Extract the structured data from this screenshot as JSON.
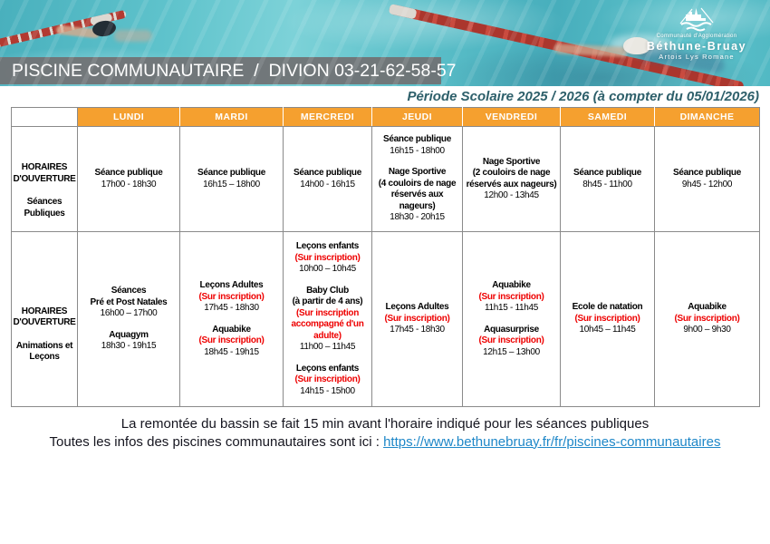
{
  "header": {
    "title": "PISCINE COMMUNAUTAIRE  /  DIVION 03-21-62-58-57",
    "logo": {
      "line1": "Communauté d'Agglomération",
      "line2": "Béthune-Bruay",
      "line3": "Artois Lys Romane"
    }
  },
  "period": "Période Scolaire 2025 / 2026 (à compter du 05/01/2026)",
  "colors": {
    "orange": "#F5A02F",
    "red": "#EE0000",
    "period_teal": "#2D5F6A",
    "link_blue": "#1E87C8",
    "grid_gray": "#8A8A8A",
    "titlebar_gray": "#717274"
  },
  "table": {
    "days": [
      "LUNDI",
      "MARDI",
      "MERCREDI",
      "JEUDI",
      "VENDREDI",
      "SAMEDI",
      "DIMANCHE"
    ],
    "rows": [
      {
        "label": {
          "title": "HORAIRES D'OUVERTURE",
          "subtitle": "Séances Publiques"
        },
        "cells": [
          [
            [
              {
                "s": "t",
                "x": "Séance publique"
              },
              {
                "s": "h",
                "x": "17h00 - 18h30"
              }
            ]
          ],
          [
            [
              {
                "s": "t",
                "x": "Séance publique"
              },
              {
                "s": "h",
                "x": "16h15 – 18h00"
              }
            ]
          ],
          [
            [
              {
                "s": "t",
                "x": "Séance publique"
              },
              {
                "s": "h",
                "x": "14h00 - 16h15"
              }
            ]
          ],
          [
            [
              {
                "s": "t",
                "x": "Séance publique"
              },
              {
                "s": "h",
                "x": "16h15 - 18h00"
              }
            ],
            [
              {
                "s": "t",
                "x": "Nage Sportive"
              },
              {
                "s": "n",
                "x": "(4 couloirs de nage réservés aux nageurs)"
              },
              {
                "s": "h",
                "x": "18h30 - 20h15"
              }
            ]
          ],
          [
            [
              {
                "s": "t",
                "x": "Nage Sportive"
              },
              {
                "s": "n",
                "x": "(2 couloirs de nage réservés aux nageurs)"
              },
              {
                "s": "h",
                "x": "12h00 - 13h45"
              }
            ]
          ],
          [
            [
              {
                "s": "t",
                "x": "Séance publique"
              },
              {
                "s": "h",
                "x": "8h45 - 11h00"
              }
            ]
          ],
          [
            [
              {
                "s": "t",
                "x": "Séance publique"
              },
              {
                "s": "h",
                "x": "9h45 - 12h00"
              }
            ]
          ]
        ]
      },
      {
        "label": {
          "title": "HORAIRES D'OUVERTURE",
          "subtitle": "Animations et Leçons"
        },
        "cells": [
          [
            [
              {
                "s": "t",
                "x": "Séances"
              },
              {
                "s": "t",
                "x": "Pré et Post Natales"
              },
              {
                "s": "h",
                "x": "16h00 – 17h00"
              }
            ],
            [
              {
                "s": "t",
                "x": "Aquagym"
              },
              {
                "s": "h",
                "x": "18h30 - 19h15"
              }
            ]
          ],
          [
            [
              {
                "s": "t",
                "x": "Leçons Adultes"
              },
              {
                "s": "r",
                "x": "(Sur inscription)"
              },
              {
                "s": "h",
                "x": "17h45 - 18h30"
              }
            ],
            [
              {
                "s": "t",
                "x": "Aquabike"
              },
              {
                "s": "r",
                "x": "(Sur inscription)"
              },
              {
                "s": "h",
                "x": "18h45 - 19h15"
              }
            ]
          ],
          [
            [
              {
                "s": "t",
                "x": "Leçons enfants"
              },
              {
                "s": "r",
                "x": "(Sur inscription)"
              },
              {
                "s": "h",
                "x": "10h00 – 10h45"
              }
            ],
            [
              {
                "s": "t",
                "x": "Baby Club"
              },
              {
                "s": "n",
                "x": "(à partir de 4 ans)"
              },
              {
                "s": "r",
                "x": "(Sur inscription accompagné d'un adulte)"
              },
              {
                "s": "h",
                "x": "11h00 – 11h45"
              }
            ],
            [
              {
                "s": "t",
                "x": "Leçons enfants"
              },
              {
                "s": "r",
                "x": "(Sur inscription)"
              },
              {
                "s": "h",
                "x": "14h15 - 15h00"
              }
            ]
          ],
          [
            [
              {
                "s": "t",
                "x": "Leçons Adultes"
              },
              {
                "s": "r",
                "x": "(Sur inscription)"
              },
              {
                "s": "h",
                "x": "17h45 - 18h30"
              }
            ]
          ],
          [
            [
              {
                "s": "t",
                "x": "Aquabike"
              },
              {
                "s": "r",
                "x": "(Sur inscription)"
              },
              {
                "s": "h",
                "x": "11h15 - 11h45"
              }
            ],
            [
              {
                "s": "t",
                "x": "Aquasurprise"
              },
              {
                "s": "r",
                "x": "(Sur inscription)"
              },
              {
                "s": "h",
                "x": "12h15 – 13h00"
              }
            ]
          ],
          [
            [
              {
                "s": "t",
                "x": "Ecole de natation"
              },
              {
                "s": "r",
                "x": "(Sur inscription)"
              },
              {
                "s": "h",
                "x": "10h45 – 11h45"
              }
            ]
          ],
          [
            [
              {
                "s": "t",
                "x": "Aquabike"
              },
              {
                "s": "r",
                "x": "(Sur inscription)"
              },
              {
                "s": "h",
                "x": "9h00 – 9h30"
              }
            ]
          ]
        ]
      }
    ]
  },
  "footer": {
    "note": "La remontée du bassin se fait 15 min avant l'horaire indiqué pour les séances publiques",
    "info_prefix": "Toutes les infos des piscines communautaires sont ici : ",
    "link_text": "https://www.bethunebruay.fr/fr/piscines-communautaires"
  }
}
